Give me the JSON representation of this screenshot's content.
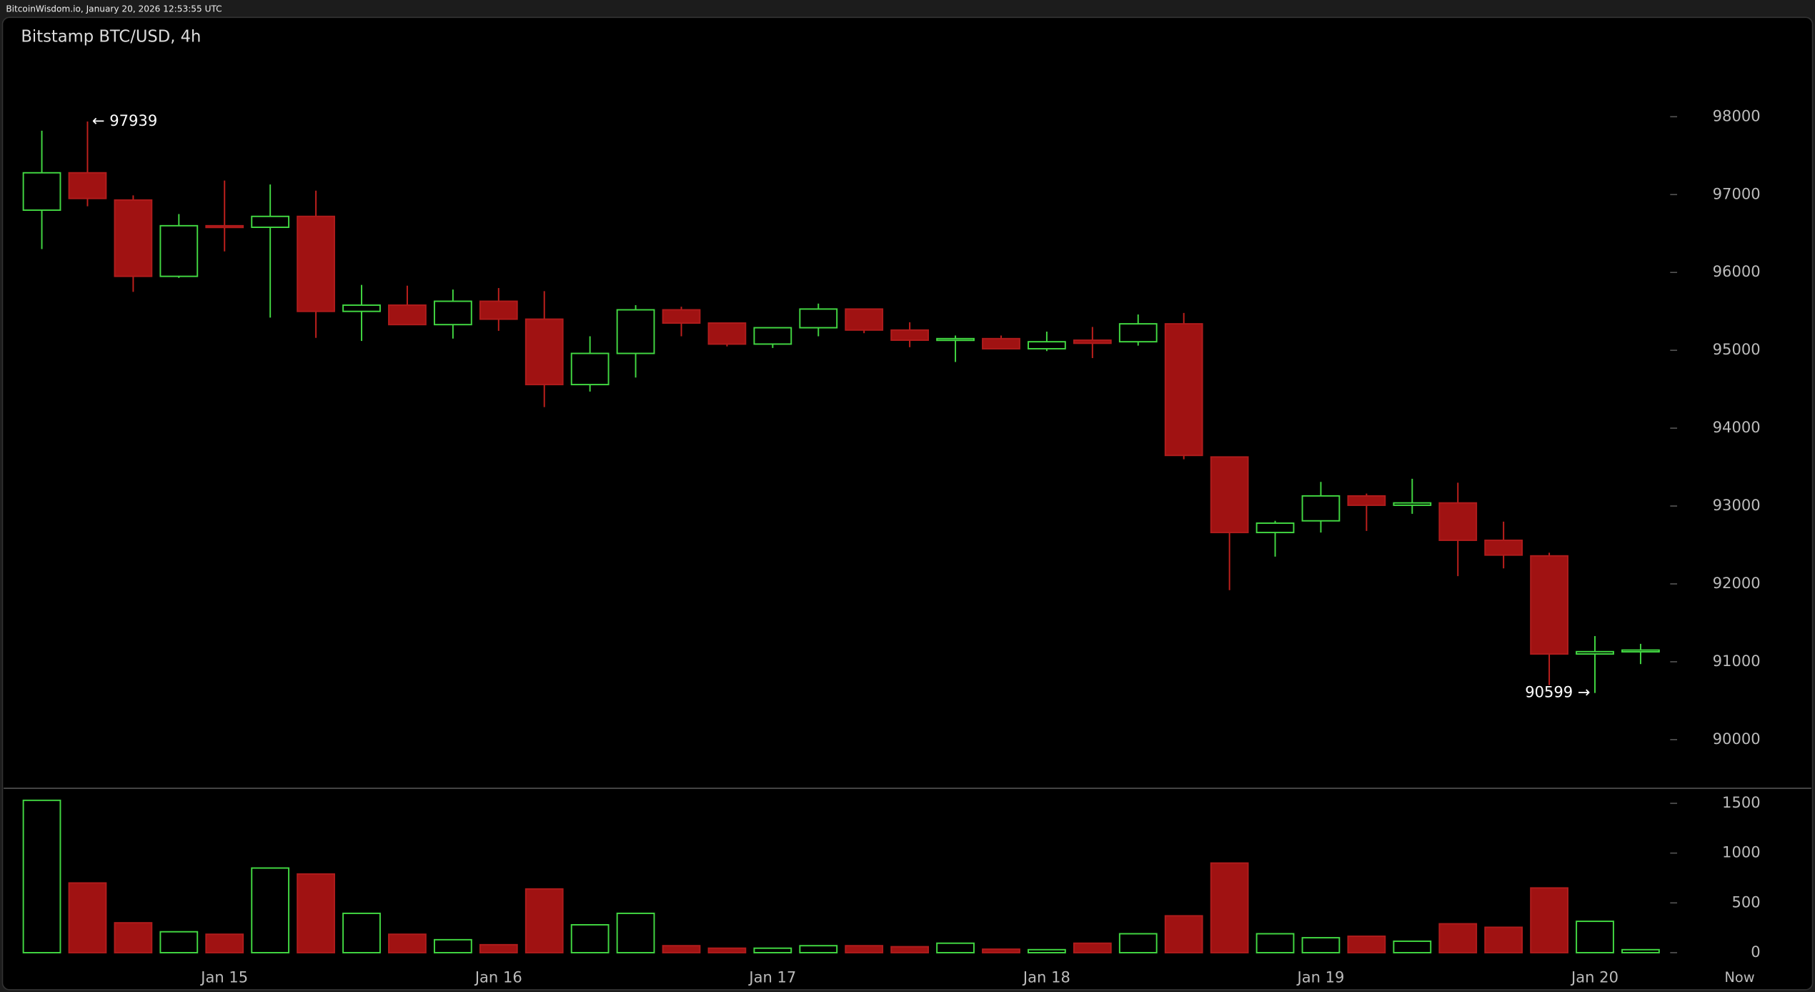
{
  "header": "BitcoinWisdom.io, January 20, 2026 12:53:55 UTC",
  "chart_data": {
    "type": "candlestick",
    "title": "Bitstamp BTC/USD, 4h",
    "categories": [
      null,
      null,
      null,
      null,
      "Jan 15",
      null,
      null,
      null,
      null,
      null,
      "Jan 16",
      null,
      null,
      null,
      null,
      null,
      "Jan 17",
      null,
      null,
      null,
      null,
      null,
      "Jan 18",
      null,
      null,
      null,
      null,
      null,
      "Jan 19",
      null,
      null,
      null,
      null,
      null,
      "Jan 20",
      null
    ],
    "x_end_label": "Now",
    "open": [
      96800,
      97280,
      96930,
      95950,
      96600,
      96580,
      96720,
      95500,
      95580,
      95330,
      95630,
      95400,
      94560,
      94960,
      95520,
      95350,
      95080,
      95290,
      95530,
      95260,
      95130,
      95150,
      95020,
      95130,
      95110,
      95340,
      93630,
      92660,
      92810,
      93130,
      93010,
      93040,
      92560,
      92360,
      91100,
      91130
    ],
    "high": [
      97820,
      97939,
      96990,
      96750,
      97180,
      97130,
      97050,
      95840,
      95830,
      95780,
      95800,
      95760,
      95180,
      95580,
      95560,
      95350,
      95290,
      95600,
      95530,
      95360,
      95190,
      95190,
      95240,
      95300,
      95460,
      95480,
      93630,
      92810,
      93310,
      93160,
      93350,
      93300,
      92800,
      92400,
      91330,
      91230
    ],
    "low": [
      96300,
      96850,
      95750,
      95930,
      96270,
      95420,
      95160,
      95120,
      95330,
      95150,
      95250,
      94270,
      94470,
      94650,
      95180,
      95050,
      95030,
      95180,
      95220,
      95040,
      94850,
      95020,
      94990,
      94900,
      95060,
      93600,
      91920,
      92350,
      92660,
      92680,
      92900,
      92100,
      92200,
      90700,
      90599,
      90970
    ],
    "close": [
      97280,
      96950,
      95950,
      96600,
      96580,
      96720,
      95500,
      95580,
      95330,
      95630,
      95400,
      94560,
      94960,
      95520,
      95350,
      95080,
      95290,
      95530,
      95260,
      95130,
      95150,
      95020,
      95110,
      95090,
      95340,
      93650,
      92660,
      92780,
      93130,
      93010,
      93040,
      92560,
      92370,
      91100,
      91130,
      91150
    ],
    "volume": [
      1530,
      700,
      300,
      210,
      185,
      850,
      790,
      395,
      185,
      130,
      80,
      640,
      280,
      395,
      70,
      45,
      45,
      70,
      70,
      60,
      95,
      35,
      30,
      95,
      190,
      370,
      900,
      190,
      150,
      165,
      115,
      290,
      255,
      650,
      315,
      30
    ],
    "up_color": "#42d842",
    "down_color": "#a01212",
    "ylim": [
      89390,
      98830
    ],
    "yticks": [
      90000,
      91000,
      92000,
      93000,
      94000,
      95000,
      96000,
      97000,
      98000
    ],
    "y2lim": [
      -116,
      1651
    ],
    "y2ticks": [
      0,
      500,
      1000,
      1500
    ],
    "annotations": [
      {
        "value": 97939,
        "label": "← 97939"
      },
      {
        "value": 90599,
        "label": "90599 →"
      }
    ]
  }
}
